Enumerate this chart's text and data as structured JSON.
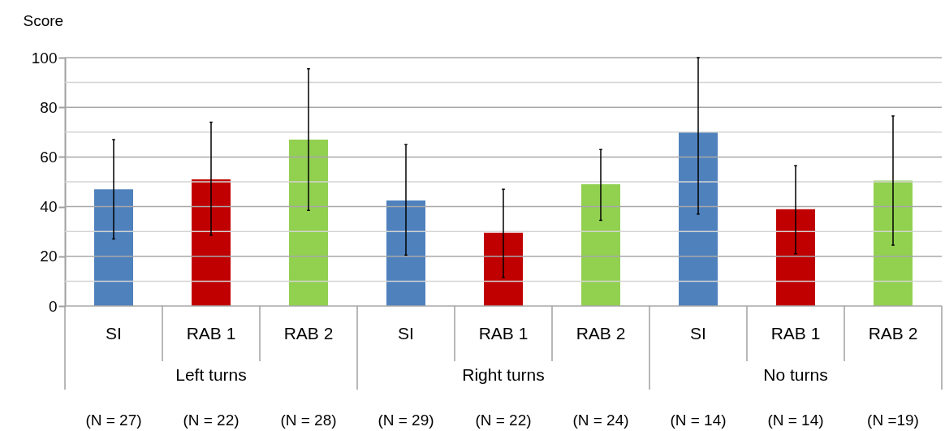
{
  "chart_data": {
    "type": "bar",
    "ylabel": "Score",
    "categories": [
      "SI",
      "RAB 1",
      "RAB 2",
      "SI",
      "RAB 1",
      "RAB 2",
      "SI",
      "RAB 1",
      "RAB 2"
    ],
    "values": [
      47,
      51,
      67,
      42.5,
      29.5,
      49,
      70,
      39,
      50.5
    ],
    "colors": [
      "#4f81bd",
      "#c00000",
      "#92d050",
      "#4f81bd",
      "#c00000",
      "#92d050",
      "#4f81bd",
      "#c00000",
      "#92d050"
    ],
    "errors": [
      [
        27,
        67
      ],
      [
        28.5,
        74
      ],
      [
        38.5,
        95.5
      ],
      [
        20.5,
        65
      ],
      [
        11.5,
        47
      ],
      [
        34.5,
        63
      ],
      [
        37,
        100
      ],
      [
        21,
        56.5
      ],
      [
        24.5,
        76.5
      ]
    ],
    "ylim": [
      0,
      100
    ],
    "yticks": [
      0,
      {
        "value": 10,
        "label": null
      },
      20,
      {
        "value": 30,
        "label": null
      },
      40,
      {
        "value": 50,
        "label": null
      },
      60,
      {
        "value": 70,
        "label": null
      },
      80,
      {
        "value": 90,
        "label": null
      },
      100
    ],
    "grid": "y",
    "annotations": [
      "Left turns",
      "Right turns",
      "No turns",
      "(N = 27)",
      "(N = 22)",
      "(N = 28)",
      "(N = 29)",
      "(N = 22)",
      "(N = 24)",
      "(N = 14)",
      "(N = 14)",
      "(N =19)"
    ]
  }
}
